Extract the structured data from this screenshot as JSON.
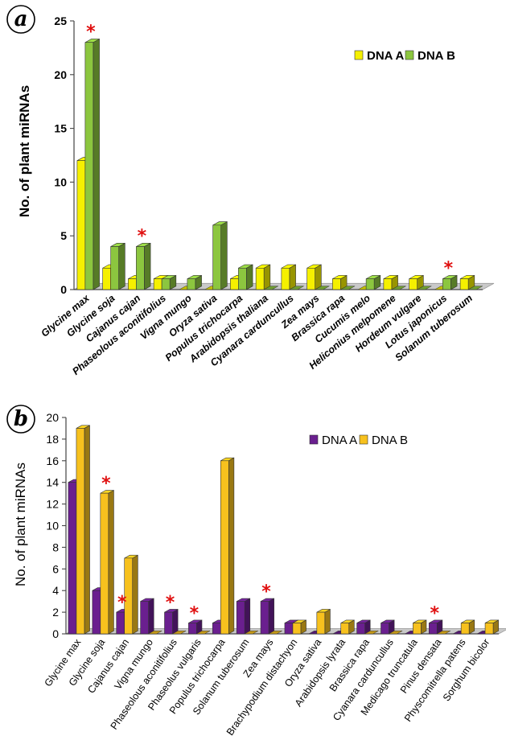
{
  "chart_data": [
    {
      "panel": "a",
      "type": "bar",
      "ylabel": "No. of plant miRNAs",
      "ylim": [
        0,
        25
      ],
      "yticks": [
        0,
        5,
        10,
        15,
        20,
        25
      ],
      "categories": [
        "Glycine max",
        "Glycine soja",
        "Cajanus cajan",
        "Phaseolous aconitifolius",
        "Vigna mungo",
        "Oryza sativa",
        "Populus trichocarpa",
        "Arabidopsis thaliana",
        "Cyanara carduncullus",
        "Zea mays",
        "Brassica rapa",
        "Cucumis melo",
        "Heliconius melpomene",
        "Hordeum vulgare",
        "Lotus japonicus",
        "Solanum tuberosum"
      ],
      "series": [
        {
          "name": "DNA A",
          "color": "#f5f000",
          "values": [
            12,
            2,
            1,
            1,
            0,
            0,
            1,
            2,
            2,
            2,
            1,
            0,
            1,
            1,
            0,
            1
          ]
        },
        {
          "name": "DNA B",
          "color": "#8cc63f",
          "values": [
            23,
            4,
            4,
            1,
            1,
            6,
            2,
            0,
            0,
            0,
            0,
            1,
            0,
            0,
            1,
            0
          ]
        }
      ],
      "marked_bars": [
        {
          "category": "Glycine max",
          "series": "DNA B"
        },
        {
          "category": "Cajanus cajan",
          "series": "DNA B"
        },
        {
          "category": "Lotus japonicus",
          "series": "DNA B"
        }
      ],
      "marker_symbol": "*",
      "legend_placement": "top-right",
      "grid": false
    },
    {
      "panel": "b",
      "type": "bar",
      "ylabel": "No. of plant miRNAs",
      "ylim": [
        0,
        20
      ],
      "yticks": [
        0,
        2,
        4,
        6,
        8,
        10,
        12,
        14,
        16,
        18,
        20
      ],
      "categories": [
        "Glycine max",
        "Glycine soja",
        "Cajanus cajan",
        "Vigna mungo",
        "Phaseolous aconitifolius",
        "Phaseolus vulgaris",
        "Populus trichocarpa",
        "Solanum tuberosum",
        "Zea mays",
        "Brachypodium distachyon",
        "Oryza sativa",
        "Arabidopsis lyrata",
        "Brassica rapa",
        "Cyanara carduncullus",
        "Medicago truncatula",
        "Pinus densata",
        "Physcomitrella  patens",
        "Sorghum bicolor"
      ],
      "series": [
        {
          "name": "DNA A",
          "color": "#6a1f8f",
          "values": [
            14,
            4,
            2,
            3,
            2,
            1,
            1,
            3,
            3,
            1,
            0,
            0,
            1,
            1,
            0,
            1,
            0,
            0
          ]
        },
        {
          "name": "DNA B",
          "color": "#f7c11e",
          "values": [
            19,
            13,
            7,
            0,
            0,
            0,
            16,
            0,
            0,
            1,
            2,
            1,
            0,
            0,
            1,
            0,
            1,
            1
          ]
        }
      ],
      "marked_bars": [
        {
          "category": "Glycine soja",
          "series": "DNA B"
        },
        {
          "category": "Cajanus cajan",
          "series": "DNA A"
        },
        {
          "category": "Phaseolous aconitifolius",
          "series": "DNA A"
        },
        {
          "category": "Phaseolus vulgaris",
          "series": "DNA A"
        },
        {
          "category": "Zea mays",
          "series": "DNA A"
        },
        {
          "category": "Pinus densata",
          "series": "DNA A"
        }
      ],
      "marker_symbol": "*",
      "legend_placement": "top-right",
      "grid": false
    }
  ]
}
